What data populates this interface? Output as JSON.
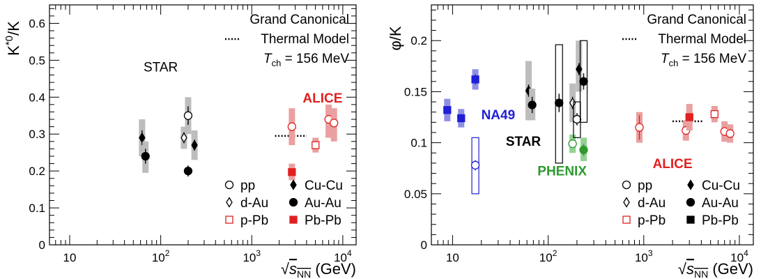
{
  "colors": {
    "black": "#000000",
    "red": "#e02020",
    "blue": "#1f1fd6",
    "green": "#2e9a2e",
    "grey_band": "#bdbdbd",
    "red_band": "#eaa0a0",
    "blue_band": "#8f8fe6",
    "green_band": "#93d293"
  },
  "chart_data": [
    {
      "type": "scatter",
      "ylabel": "K*0/K",
      "ylabel_parts": {
        "base": "K",
        "sup": "*0",
        "tail": "/K"
      },
      "xlabel_parts": {
        "sqrt": "√",
        "s": "s",
        "sub": "NN",
        "unit": " (GeV)"
      },
      "x_scale": "log",
      "xlim": [
        6,
        14000
      ],
      "ylim": [
        0,
        0.65
      ],
      "x_ticks": [
        {
          "value": 10,
          "base": "10",
          "exp": ""
        },
        {
          "value": 100,
          "base": "10",
          "exp": "2"
        },
        {
          "value": 1000,
          "base": "10",
          "exp": "3"
        },
        {
          "value": 10000,
          "base": "10",
          "exp": "4"
        }
      ],
      "y_ticks": [
        {
          "value": 0,
          "label": "0"
        },
        {
          "value": 0.1,
          "label": "0.1"
        },
        {
          "value": 0.2,
          "label": "0.2"
        },
        {
          "value": 0.3,
          "label": "0.3"
        },
        {
          "value": 0.4,
          "label": "0.4"
        },
        {
          "value": 0.5,
          "label": "0.5"
        },
        {
          "value": 0.6,
          "label": "0.6"
        }
      ],
      "grid": false,
      "model": {
        "lines": [
          "Grand Canonical",
          "Thermal Model"
        ],
        "temperature": {
          "T": "T",
          "sub": "ch",
          "value": " = 156 MeV"
        },
        "value": 0.295,
        "x_range": [
          1800,
          4000
        ]
      },
      "labels": [
        {
          "text": "STAR",
          "x": 100,
          "y": 0.47,
          "color": "black"
        },
        {
          "text": "ALICE",
          "x": 6000,
          "y": 0.385,
          "color": "red"
        }
      ],
      "points": [
        {
          "system": "Cu-Cu",
          "x": 62.4,
          "y": 0.29,
          "sys_lo": 0.24,
          "sys_hi": 0.34,
          "stat": 0.02,
          "marker": "diamond",
          "filled": true,
          "color": "black",
          "band": "grey_band"
        },
        {
          "system": "Au-Au",
          "x": 68,
          "y": 0.24,
          "sys_lo": 0.195,
          "sys_hi": 0.28,
          "stat": 0.02,
          "marker": "circle",
          "filled": true,
          "color": "black",
          "band": "grey_band"
        },
        {
          "system": "d-Au",
          "x": 180,
          "y": 0.29,
          "sys_lo": 0.26,
          "sys_hi": 0.32,
          "stat": 0.015,
          "marker": "diamond",
          "filled": false,
          "color": "black",
          "band": "grey_band"
        },
        {
          "system": "pp",
          "x": 200,
          "y": 0.35,
          "sys_lo": 0.3,
          "sys_hi": 0.4,
          "stat": 0.025,
          "marker": "circle",
          "filled": false,
          "color": "black",
          "band": "grey_band"
        },
        {
          "system": "Au-Au",
          "x": 200,
          "y": 0.2,
          "sys_lo": 0.2,
          "sys_hi": 0.2,
          "stat": 0.015,
          "marker": "circle",
          "filled": true,
          "color": "black",
          "band": "none"
        },
        {
          "system": "Cu-Cu",
          "x": 235,
          "y": 0.27,
          "sys_lo": 0.23,
          "sys_hi": 0.31,
          "stat": 0.015,
          "marker": "diamond",
          "filled": true,
          "color": "black",
          "band": "grey_band"
        },
        {
          "system": "pp",
          "x": 2760,
          "y": 0.32,
          "sys_lo": 0.27,
          "sys_hi": 0.37,
          "stat": 0.01,
          "marker": "circle",
          "filled": false,
          "color": "red",
          "band": "red_band"
        },
        {
          "system": "Pb-Pb",
          "x": 2760,
          "y": 0.197,
          "sys_lo": 0.175,
          "sys_hi": 0.22,
          "stat": 0.006,
          "marker": "square",
          "filled": true,
          "color": "red",
          "band": "red_band"
        },
        {
          "system": "p-Pb",
          "x": 5020,
          "y": 0.27,
          "sys_lo": 0.25,
          "sys_hi": 0.29,
          "stat": 0.006,
          "marker": "square",
          "filled": false,
          "color": "red",
          "band": "red_band"
        },
        {
          "system": "pp",
          "x": 7000,
          "y": 0.34,
          "sys_lo": 0.29,
          "sys_hi": 0.38,
          "stat": 0.01,
          "marker": "circle",
          "filled": false,
          "color": "red",
          "band": "red_band"
        },
        {
          "system": "pp",
          "x": 8000,
          "y": 0.33,
          "sys_lo": 0.28,
          "sys_hi": 0.37,
          "stat": 0.01,
          "marker": "circle",
          "filled": false,
          "color": "red",
          "band": "red_band"
        }
      ],
      "legend": [
        {
          "label": "pp",
          "marker": "circle",
          "filled": false,
          "color": "black"
        },
        {
          "label": "Cu-Cu",
          "marker": "diamond",
          "filled": true,
          "color": "black"
        },
        {
          "label": "d-Au",
          "marker": "diamond",
          "filled": false,
          "color": "black"
        },
        {
          "label": "Au-Au",
          "marker": "circle",
          "filled": true,
          "color": "black"
        },
        {
          "label": "p-Pb",
          "marker": "square",
          "filled": false,
          "color": "red"
        },
        {
          "label": "Pb-Pb",
          "marker": "square",
          "filled": true,
          "color": "red"
        }
      ],
      "legend_position": "bottom-right"
    },
    {
      "type": "scatter",
      "ylabel": "φ/K",
      "ylabel_parts": {
        "base": "φ/K",
        "sup": "",
        "tail": ""
      },
      "xlabel_parts": {
        "sqrt": "√",
        "s": "s",
        "sub": "NN",
        "unit": " (GeV)"
      },
      "x_scale": "log",
      "xlim": [
        6,
        14000
      ],
      "ylim": [
        0,
        0.235
      ],
      "x_ticks": [
        {
          "value": 10,
          "base": "10",
          "exp": ""
        },
        {
          "value": 100,
          "base": "10",
          "exp": "2"
        },
        {
          "value": 1000,
          "base": "10",
          "exp": "3"
        },
        {
          "value": 10000,
          "base": "10",
          "exp": "4"
        }
      ],
      "y_ticks": [
        {
          "value": 0,
          "label": "0"
        },
        {
          "value": 0.05,
          "label": "0.05"
        },
        {
          "value": 0.1,
          "label": "0.1"
        },
        {
          "value": 0.15,
          "label": "0.15"
        },
        {
          "value": 0.2,
          "label": "0.2"
        }
      ],
      "grid": false,
      "model": {
        "lines": [
          "Grand Canonical",
          "Thermal Model"
        ],
        "temperature": {
          "T": "T",
          "sub": "ch",
          "value": " = 156 MeV"
        },
        "value": 0.121,
        "x_range": [
          2000,
          4200
        ]
      },
      "labels": [
        {
          "text": "NA49",
          "x": 30,
          "y": 0.123,
          "color": "blue"
        },
        {
          "text": "STAR",
          "x": 55,
          "y": 0.097,
          "color": "black"
        },
        {
          "text": "PHENIX",
          "x": 140,
          "y": 0.068,
          "color": "green"
        },
        {
          "text": "ALICE",
          "x": 2000,
          "y": 0.075,
          "color": "red"
        }
      ],
      "points": [
        {
          "system": "Pb-Pb",
          "x": 8.8,
          "y": 0.132,
          "sys_lo": 0.121,
          "sys_hi": 0.143,
          "stat": 0.004,
          "marker": "square",
          "filled": true,
          "color": "blue",
          "band": "blue_band"
        },
        {
          "system": "Pb-Pb",
          "x": 12.3,
          "y": 0.124,
          "sys_lo": 0.115,
          "sys_hi": 0.133,
          "stat": 0.004,
          "marker": "square",
          "filled": true,
          "color": "blue",
          "band": "blue_band"
        },
        {
          "system": "Pb-Pb",
          "x": 17.3,
          "y": 0.162,
          "sys_lo": 0.152,
          "sys_hi": 0.172,
          "stat": 0.005,
          "marker": "square",
          "filled": true,
          "color": "blue",
          "band": "blue_band"
        },
        {
          "system": "pp",
          "x": 17.3,
          "y": 0.078,
          "sys_lo": 0.05,
          "sys_hi": 0.105,
          "stat": 0.005,
          "marker": "circle",
          "filled": false,
          "color": "blue",
          "band": "box"
        },
        {
          "system": "Cu-Cu",
          "x": 62.4,
          "y": 0.151,
          "sys_lo": 0.122,
          "sys_hi": 0.18,
          "stat": 0.006,
          "marker": "diamond",
          "filled": true,
          "color": "black",
          "band": "grey_band"
        },
        {
          "system": "Au-Au",
          "x": 68,
          "y": 0.137,
          "sys_lo": 0.122,
          "sys_hi": 0.153,
          "stat": 0.008,
          "marker": "circle",
          "filled": true,
          "color": "black",
          "band": "grey_band"
        },
        {
          "system": "Au-Au",
          "x": 130,
          "y": 0.139,
          "sys_lo": 0.08,
          "sys_hi": 0.196,
          "stat": 0.009,
          "marker": "circle",
          "filled": true,
          "color": "black",
          "band": "box"
        },
        {
          "system": "d-Au",
          "x": 180,
          "y": 0.139,
          "sys_lo": 0.12,
          "sys_hi": 0.158,
          "stat": 0.006,
          "marker": "diamond",
          "filled": false,
          "color": "black",
          "band": "grey_band"
        },
        {
          "system": "pp",
          "x": 180,
          "y": 0.099,
          "sys_lo": 0.09,
          "sys_hi": 0.108,
          "stat": 0.004,
          "marker": "circle",
          "filled": false,
          "color": "green",
          "band": "green_band"
        },
        {
          "system": "Cu-Cu",
          "x": 210,
          "y": 0.172,
          "sys_lo": 0.15,
          "sys_hi": 0.2,
          "stat": 0.006,
          "marker": "diamond",
          "filled": true,
          "color": "black",
          "band": "grey_band"
        },
        {
          "system": "pp",
          "x": 200,
          "y": 0.123,
          "sys_lo": 0.105,
          "sys_hi": 0.14,
          "stat": 0.006,
          "marker": "circle",
          "filled": false,
          "color": "black",
          "band": "box"
        },
        {
          "system": "Au-Au",
          "x": 235,
          "y": 0.16,
          "sys_lo": 0.12,
          "sys_hi": 0.2,
          "stat": 0.008,
          "marker": "circle",
          "filled": true,
          "color": "black",
          "band": "box"
        },
        {
          "system": "Au-Au",
          "x": 235,
          "y": 0.093,
          "sys_lo": 0.082,
          "sys_hi": 0.105,
          "stat": 0.006,
          "marker": "circle",
          "filled": true,
          "color": "green",
          "band": "green_band"
        },
        {
          "system": "pp",
          "x": 900,
          "y": 0.115,
          "sys_lo": 0.1,
          "sys_hi": 0.13,
          "stat": 0.012,
          "marker": "circle",
          "filled": false,
          "color": "red",
          "band": "red_band"
        },
        {
          "system": "pp",
          "x": 2760,
          "y": 0.112,
          "sys_lo": 0.102,
          "sys_hi": 0.122,
          "stat": 0.004,
          "marker": "circle",
          "filled": false,
          "color": "red",
          "band": "red_band"
        },
        {
          "system": "Pb-Pb",
          "x": 3000,
          "y": 0.125,
          "sys_lo": 0.112,
          "sys_hi": 0.138,
          "stat": 0.004,
          "marker": "square",
          "filled": true,
          "color": "red",
          "band": "red_band"
        },
        {
          "system": "p-Pb",
          "x": 5500,
          "y": 0.128,
          "sys_lo": 0.12,
          "sys_hi": 0.136,
          "stat": 0.003,
          "marker": "square",
          "filled": false,
          "color": "red",
          "band": "red_band"
        },
        {
          "system": "pp",
          "x": 7000,
          "y": 0.111,
          "sys_lo": 0.101,
          "sys_hi": 0.121,
          "stat": 0.003,
          "marker": "circle",
          "filled": false,
          "color": "red",
          "band": "red_band"
        },
        {
          "system": "pp",
          "x": 8000,
          "y": 0.109,
          "sys_lo": 0.1,
          "sys_hi": 0.118,
          "stat": 0.003,
          "marker": "circle",
          "filled": false,
          "color": "red",
          "band": "red_band"
        }
      ],
      "legend": [
        {
          "label": "pp",
          "marker": "circle",
          "filled": false,
          "color": "black"
        },
        {
          "label": "Cu-Cu",
          "marker": "diamond",
          "filled": true,
          "color": "black"
        },
        {
          "label": "d-Au",
          "marker": "diamond",
          "filled": false,
          "color": "black"
        },
        {
          "label": "Au-Au",
          "marker": "circle",
          "filled": true,
          "color": "black"
        },
        {
          "label": "p-Pb",
          "marker": "square",
          "filled": false,
          "color": "red"
        },
        {
          "label": "Pb-Pb",
          "marker": "square",
          "filled": true,
          "color": "black"
        }
      ],
      "legend_position": "bottom-right"
    }
  ]
}
